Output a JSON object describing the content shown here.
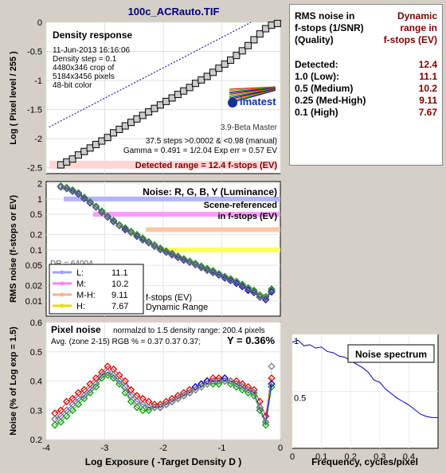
{
  "title": "100c_ACRauto.TIF",
  "table": {
    "head_left": [
      "RMS noise in",
      "f-stops (1/SNR)",
      "(Quality)"
    ],
    "head_right": [
      "Dynamic",
      "range in",
      "f-stops (EV)"
    ],
    "rows": [
      {
        "label": "Detected:",
        "value": "12.4"
      },
      {
        "label": "1.0  (Low):",
        "value": "11.1"
      },
      {
        "label": "0.5  (Medium)",
        "value": "10.2"
      },
      {
        "label": "0.25 (Med-High)",
        "value": "9.11"
      },
      {
        "label": "0.1  (High)",
        "value": "7.67"
      }
    ]
  },
  "chart_data": [
    {
      "type": "line",
      "name": "density-response",
      "title": "Density response",
      "xlabel": "",
      "ylabel": "Log ( Pixel level / 255 )",
      "xlim": [
        -4,
        0
      ],
      "ylim": [
        -2.6,
        0
      ],
      "xticks": [
        -4,
        -3,
        -2,
        -1,
        0
      ],
      "yticks": [
        0,
        -0.5,
        -1,
        -1.5,
        -2,
        -2.5
      ],
      "yticklabels": [
        "0",
        "-0.5",
        "-1",
        "-1.5",
        "-2",
        "-2.5"
      ],
      "info": [
        "11-Jun-2013 16:16:06",
        "Density step = 0.1",
        "4480x346 crop of",
        "5184x3456 pixels",
        "48-bit color"
      ],
      "logo": {
        "text": "imatest",
        "version": "3.9-Beta  Master"
      },
      "notes": [
        "37.5 steps >0.0002 & <0.98 (manual)",
        "Gamma = 0.491 = 1/2.04  Exp err = 0.57 EV"
      ],
      "detected_label": "Detected range = 12.4 f-stops (EV)",
      "series": [
        {
          "x": [
            -3.75,
            -3.65,
            -3.55,
            -3.45,
            -3.35,
            -3.25,
            -3.15,
            -3.05,
            -2.95,
            -2.85,
            -2.75,
            -2.65,
            -2.55,
            -2.45,
            -2.35,
            -2.25,
            -2.15,
            -2.05,
            -1.95,
            -1.85,
            -1.75,
            -1.65,
            -1.55,
            -1.45,
            -1.35,
            -1.25,
            -1.15,
            -1.05,
            -0.95,
            -0.85,
            -0.75,
            -0.65,
            -0.55,
            -0.45,
            -0.35,
            -0.25,
            -0.15,
            -0.05
          ],
          "y": [
            -2.45,
            -2.4,
            -2.35,
            -2.28,
            -2.22,
            -2.16,
            -2.1,
            -2.04,
            -1.98,
            -1.9,
            -1.84,
            -1.78,
            -1.72,
            -1.66,
            -1.6,
            -1.54,
            -1.48,
            -1.42,
            -1.36,
            -1.3,
            -1.24,
            -1.18,
            -1.12,
            -1.05,
            -0.99,
            -0.93,
            -0.86,
            -0.79,
            -0.72,
            -0.65,
            -0.57,
            -0.49,
            -0.4,
            -0.3,
            -0.2,
            -0.11,
            -0.05,
            -0.02
          ]
        },
        {
          "x": [
            -3.95,
            -0.5
          ],
          "y": [
            -1.8,
            0
          ]
        }
      ]
    },
    {
      "type": "line",
      "name": "rms-noise",
      "title": "Noise: R, G, B, Y (Luminance)",
      "subtitle": [
        "Scene-referenced",
        "in f-stops (EV)"
      ],
      "xlabel": "",
      "ylabel": "RMS noise (f-stops or EV)",
      "scale": "log",
      "xlim": [
        -4,
        0
      ],
      "ylim": [
        0.005,
        2.2
      ],
      "yticks": [
        2,
        1,
        0.5,
        0.2,
        0.1,
        0.05,
        0.02,
        0.01
      ],
      "yticklabels": [
        "2",
        "1",
        "0.5",
        "0.2",
        "0.1",
        "0.05",
        "0.02",
        "0.01"
      ],
      "dr_lines": [
        {
          "level": 1.0,
          "x0": -3.7,
          "color": "#b3b3ff"
        },
        {
          "level": 0.5,
          "x0": -3.2,
          "color": "#ff99ff"
        },
        {
          "level": 0.25,
          "x0": -2.3,
          "color": "#ffc7a8"
        },
        {
          "level": 0.1,
          "x0": -2.1,
          "color": "#ffff66"
        }
      ],
      "legend": [
        {
          "label": "L:",
          "value": "11.1",
          "color": "#a0a0ff"
        },
        {
          "label": "M:",
          "value": "10.2",
          "color": "#ff80ff"
        },
        {
          "label": "M-H:",
          "value": "9.11",
          "color": "#ffb08a"
        },
        {
          "label": "H:",
          "value": "7.67",
          "color": "#e0e000"
        }
      ],
      "legend_caption": [
        "f-stops (EV)",
        "Dynamic Range"
      ],
      "partial_label": "DR = 64004",
      "x": [
        -3.75,
        -3.65,
        -3.55,
        -3.45,
        -3.35,
        -3.25,
        -3.15,
        -3.05,
        -2.95,
        -2.85,
        -2.75,
        -2.65,
        -2.55,
        -2.45,
        -2.35,
        -2.25,
        -2.15,
        -2.05,
        -1.95,
        -1.85,
        -1.75,
        -1.65,
        -1.55,
        -1.45,
        -1.35,
        -1.25,
        -1.15,
        -1.05,
        -0.95,
        -0.85,
        -0.75,
        -0.65,
        -0.55,
        -0.45,
        -0.35,
        -0.25,
        -0.15
      ],
      "series": [
        {
          "color": "#e00000",
          "y": [
            1.75,
            1.62,
            1.45,
            1.28,
            1.05,
            0.86,
            0.7,
            0.56,
            0.45,
            0.37,
            0.3,
            0.26,
            0.22,
            0.19,
            0.16,
            0.14,
            0.12,
            0.105,
            0.092,
            0.082,
            0.073,
            0.065,
            0.058,
            0.052,
            0.046,
            0.041,
            0.037,
            0.033,
            0.029,
            0.026,
            0.023,
            0.02,
            0.017,
            0.015,
            0.012,
            0.011,
            0.016
          ]
        },
        {
          "color": "#00a000",
          "y": [
            1.8,
            1.68,
            1.5,
            1.32,
            1.08,
            0.88,
            0.72,
            0.58,
            0.46,
            0.38,
            0.31,
            0.27,
            0.23,
            0.2,
            0.17,
            0.145,
            0.125,
            0.108,
            0.095,
            0.085,
            0.075,
            0.067,
            0.06,
            0.054,
            0.048,
            0.043,
            0.039,
            0.034,
            0.03,
            0.027,
            0.024,
            0.021,
            0.018,
            0.016,
            0.013,
            0.012,
            0.017
          ]
        },
        {
          "color": "#0000e0",
          "y": [
            1.72,
            1.6,
            1.42,
            1.25,
            1.02,
            0.84,
            0.69,
            0.55,
            0.44,
            0.36,
            0.3,
            0.25,
            0.22,
            0.185,
            0.158,
            0.138,
            0.118,
            0.102,
            0.09,
            0.08,
            0.071,
            0.063,
            0.057,
            0.051,
            0.045,
            0.04,
            0.036,
            0.032,
            0.028,
            0.025,
            0.022,
            0.019,
            0.016,
            0.0145,
            0.0118,
            0.0105,
            0.015
          ]
        },
        {
          "color": "#707070",
          "y": [
            1.76,
            1.64,
            1.46,
            1.29,
            1.05,
            0.86,
            0.7,
            0.56,
            0.45,
            0.37,
            0.3,
            0.26,
            0.22,
            0.19,
            0.162,
            0.14,
            0.12,
            0.105,
            0.092,
            0.082,
            0.073,
            0.065,
            0.058,
            0.052,
            0.046,
            0.041,
            0.037,
            0.033,
            0.029,
            0.026,
            0.023,
            0.02,
            0.017,
            0.015,
            0.012,
            0.011,
            0.016
          ]
        }
      ]
    },
    {
      "type": "line",
      "name": "pixel-noise",
      "title": "Pixel noise",
      "note": "normalzd to 1.5 density range: 200.4 pixels",
      "avg_label": "Avg. (zone 2-15) RGB % = 0.37  0.37  0.37;",
      "y_pct": "Y = 0.36%",
      "xlabel": "Log Exposure ( -Target Density D )",
      "ylabel": "Noise (% of Log exp = 1.5)",
      "xlim": [
        -4,
        0
      ],
      "ylim": [
        0.2,
        0.6
      ],
      "xticks": [
        -4,
        -3,
        -2,
        -1,
        0
      ],
      "yticks": [
        0.2,
        0.3,
        0.4,
        0.5,
        0.6
      ],
      "yticklabels": [
        "0.2",
        "0.3",
        "0.4",
        "0.5",
        "0.6"
      ],
      "x": [
        -3.85,
        -3.75,
        -3.65,
        -3.55,
        -3.45,
        -3.35,
        -3.25,
        -3.15,
        -3.05,
        -2.95,
        -2.85,
        -2.75,
        -2.65,
        -2.55,
        -2.45,
        -2.35,
        -2.25,
        -2.15,
        -2.05,
        -1.95,
        -1.85,
        -1.75,
        -1.65,
        -1.55,
        -1.45,
        -1.35,
        -1.25,
        -1.15,
        -1.05,
        -0.95,
        -0.85,
        -0.75,
        -0.65,
        -0.55,
        -0.45,
        -0.35,
        -0.25,
        -0.15
      ],
      "series": [
        {
          "color": "#e00000",
          "y": [
            0.29,
            0.3,
            0.33,
            0.34,
            0.36,
            0.37,
            0.39,
            0.41,
            0.43,
            0.45,
            0.44,
            0.42,
            0.4,
            0.37,
            0.35,
            0.34,
            0.33,
            0.32,
            0.32,
            0.33,
            0.34,
            0.35,
            0.36,
            0.37,
            0.38,
            0.39,
            0.4,
            0.41,
            0.41,
            0.41,
            0.4,
            0.4,
            0.39,
            0.38,
            0.37,
            0.33,
            0.28,
            0.41
          ]
        },
        {
          "color": "#00a000",
          "y": [
            0.25,
            0.26,
            0.28,
            0.3,
            0.32,
            0.34,
            0.36,
            0.38,
            0.41,
            0.42,
            0.41,
            0.39,
            0.36,
            0.33,
            0.31,
            0.3,
            0.3,
            0.31,
            0.31,
            0.32,
            0.33,
            0.34,
            0.35,
            0.36,
            0.37,
            0.38,
            0.39,
            0.39,
            0.39,
            0.4,
            0.39,
            0.38,
            0.37,
            0.36,
            0.35,
            0.3,
            0.25,
            0.38
          ]
        },
        {
          "color": "#0000e0",
          "y": [
            0.27,
            0.28,
            0.3,
            0.32,
            0.34,
            0.35,
            0.37,
            0.39,
            0.42,
            0.43,
            0.42,
            0.4,
            0.38,
            0.35,
            0.33,
            0.32,
            0.31,
            0.31,
            0.31,
            0.32,
            0.33,
            0.34,
            0.35,
            0.36,
            0.38,
            0.39,
            0.4,
            0.4,
            0.4,
            0.41,
            0.4,
            0.39,
            0.38,
            0.37,
            0.36,
            0.31,
            0.26,
            0.39
          ]
        },
        {
          "color": "#808080",
          "y": [
            0.27,
            0.28,
            0.3,
            0.32,
            0.34,
            0.35,
            0.37,
            0.39,
            0.42,
            0.43,
            0.42,
            0.4,
            0.38,
            0.35,
            0.33,
            0.32,
            0.31,
            0.31,
            0.31,
            0.32,
            0.33,
            0.34,
            0.35,
            0.36,
            0.37,
            0.38,
            0.39,
            0.4,
            0.4,
            0.4,
            0.4,
            0.39,
            0.38,
            0.37,
            0.36,
            0.31,
            0.26,
            0.45
          ]
        }
      ]
    },
    {
      "type": "line",
      "name": "noise-spectrum",
      "title": "Noise spectrum",
      "xlabel": "Frequency, cycles/pixel",
      "ylabel": "",
      "xlim": [
        0,
        0.5
      ],
      "ylim": [
        0,
        1.0
      ],
      "xticks": [
        0,
        0.1,
        0.2,
        0.3,
        0.4
      ],
      "xticklabels": [
        "0",
        "0.1",
        "0.2",
        "0.3",
        "0.4"
      ],
      "yticks": [
        0.5,
        1
      ],
      "yticklabels": [
        "0.5",
        "1"
      ],
      "series": [
        {
          "color": "#0000c0",
          "x": [
            0.0,
            0.02,
            0.04,
            0.06,
            0.08,
            0.1,
            0.12,
            0.14,
            0.16,
            0.18,
            0.2,
            0.22,
            0.24,
            0.26,
            0.28,
            0.3,
            0.32,
            0.34,
            0.36,
            0.38,
            0.4,
            0.42,
            0.44,
            0.46,
            0.48,
            0.5
          ],
          "y": [
            0.93,
            0.95,
            0.9,
            0.91,
            0.88,
            0.89,
            0.85,
            0.84,
            0.81,
            0.8,
            0.77,
            0.74,
            0.71,
            0.67,
            0.6,
            0.58,
            0.52,
            0.48,
            0.44,
            0.41,
            0.38,
            0.34,
            0.3,
            0.28,
            0.27,
            0.27
          ]
        }
      ]
    }
  ]
}
